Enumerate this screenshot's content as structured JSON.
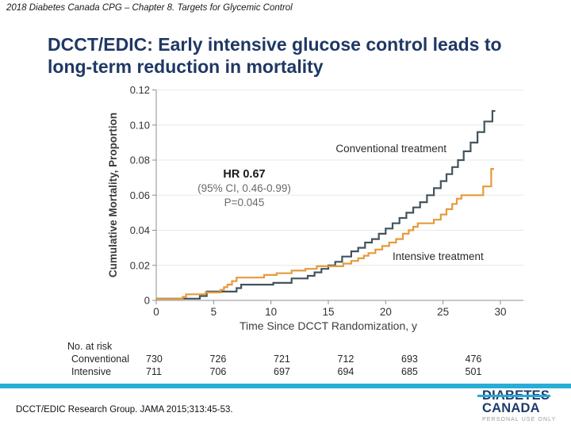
{
  "slide": {
    "header": "2018 Diabetes Canada CPG – Chapter 8.  Targets for Glycemic Control",
    "title": "DCCT/EDIC: Early intensive glucose control leads to long-term reduction in mortality",
    "citation": "DCCT/EDIC Research Group. JAMA 2015;313:45-53.",
    "accent_bar_color": "#27aed6",
    "title_color": "#1f3864",
    "logo": {
      "line1": "DIABETES",
      "line2": "CANADA",
      "tagline": "PERSONAL USE ONLY",
      "navy": "#1d3a6d",
      "teal": "#2aa9d2"
    }
  },
  "annotation": {
    "hr": "HR 0.67",
    "ci": "(95% CI, 0.46-0.99)",
    "p": "P=0.045"
  },
  "chart_data": {
    "type": "line",
    "subtype": "kaplan-meier-step",
    "title": "",
    "xlabel": "Time Since DCCT Randomization, y",
    "ylabel": "Cumulative Mortality, Proportion",
    "xlim": [
      0,
      30
    ],
    "ylim": [
      0,
      0.12
    ],
    "xticks": [
      0,
      5,
      10,
      15,
      20,
      25,
      30
    ],
    "yticks": [
      0,
      0.02,
      0.04,
      0.06,
      0.08,
      0.1,
      0.12
    ],
    "ytick_labels": [
      "0",
      "0.02",
      "0.04",
      "0.06",
      "0.08",
      "0.10",
      "0.12"
    ],
    "grid": "horizontal",
    "legend_position": "inline-labels",
    "series": [
      {
        "name": "Conventional treatment",
        "color": "#42545e",
        "points": [
          [
            0,
            0.001
          ],
          [
            3.8,
            0.0025
          ],
          [
            4.4,
            0.005
          ],
          [
            7.0,
            0.007
          ],
          [
            7.4,
            0.009
          ],
          [
            10.2,
            0.01
          ],
          [
            11.8,
            0.0125
          ],
          [
            13.2,
            0.014
          ],
          [
            13.8,
            0.016
          ],
          [
            14.4,
            0.018
          ],
          [
            15.0,
            0.02
          ],
          [
            15.6,
            0.022
          ],
          [
            16.2,
            0.025
          ],
          [
            17.0,
            0.028
          ],
          [
            17.6,
            0.03
          ],
          [
            18.2,
            0.033
          ],
          [
            18.8,
            0.035
          ],
          [
            19.4,
            0.038
          ],
          [
            20.0,
            0.041
          ],
          [
            20.6,
            0.044
          ],
          [
            21.2,
            0.047
          ],
          [
            21.8,
            0.05
          ],
          [
            22.4,
            0.053
          ],
          [
            23.0,
            0.056
          ],
          [
            23.6,
            0.06
          ],
          [
            24.2,
            0.064
          ],
          [
            24.8,
            0.068
          ],
          [
            25.3,
            0.072
          ],
          [
            25.8,
            0.076
          ],
          [
            26.3,
            0.08
          ],
          [
            26.8,
            0.085
          ],
          [
            27.4,
            0.09
          ],
          [
            28.0,
            0.096
          ],
          [
            28.6,
            0.102
          ],
          [
            29.3,
            0.108
          ],
          [
            29.55,
            0.108
          ]
        ]
      },
      {
        "name": "Intensive treatment",
        "color": "#e59b3c",
        "points": [
          [
            0,
            0.0008
          ],
          [
            2.3,
            0.002
          ],
          [
            2.6,
            0.0035
          ],
          [
            4.3,
            0.0045
          ],
          [
            5.6,
            0.006
          ],
          [
            5.9,
            0.0075
          ],
          [
            6.2,
            0.009
          ],
          [
            6.6,
            0.011
          ],
          [
            7.0,
            0.013
          ],
          [
            9.4,
            0.0145
          ],
          [
            10.5,
            0.0155
          ],
          [
            11.8,
            0.017
          ],
          [
            13.0,
            0.018
          ],
          [
            14.0,
            0.0195
          ],
          [
            16.3,
            0.021
          ],
          [
            17.0,
            0.0225
          ],
          [
            17.6,
            0.024
          ],
          [
            18.1,
            0.0255
          ],
          [
            18.5,
            0.027
          ],
          [
            19.1,
            0.029
          ],
          [
            19.7,
            0.031
          ],
          [
            20.3,
            0.033
          ],
          [
            20.9,
            0.035
          ],
          [
            21.5,
            0.038
          ],
          [
            22.0,
            0.04
          ],
          [
            22.4,
            0.042
          ],
          [
            22.8,
            0.044
          ],
          [
            24.2,
            0.046
          ],
          [
            24.8,
            0.049
          ],
          [
            25.3,
            0.052
          ],
          [
            25.8,
            0.055
          ],
          [
            26.2,
            0.058
          ],
          [
            26.6,
            0.06
          ],
          [
            28.5,
            0.065
          ],
          [
            29.2,
            0.075
          ],
          [
            29.45,
            0.075
          ]
        ]
      }
    ],
    "at_risk": {
      "header": "No. at risk",
      "times": [
        0,
        5,
        10,
        15,
        20,
        25
      ],
      "rows": [
        {
          "label": "Conventional",
          "values": [
            730,
            726,
            721,
            712,
            693,
            476
          ]
        },
        {
          "label": "Intensive",
          "values": [
            711,
            706,
            697,
            694,
            685,
            501
          ]
        }
      ]
    }
  }
}
